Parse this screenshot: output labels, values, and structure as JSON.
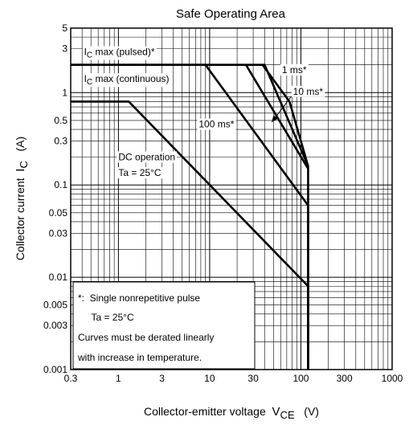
{
  "chart_data": {
    "type": "line",
    "title": "Safe Operating Area",
    "xlabel": {
      "main": "Collector-emitter voltage",
      "sym": "V",
      "sub": "CE",
      "unit": "(V)"
    },
    "ylabel": {
      "main": "Collector current",
      "sym": "I",
      "sub": "C",
      "unit": "(A)"
    },
    "x_scale": "log",
    "y_scale": "log",
    "xlim": [
      0.3,
      1000
    ],
    "ylim": [
      0.001,
      5
    ],
    "grid": true,
    "x_ticks": [
      {
        "v": 0.3,
        "t": "0.3"
      },
      {
        "v": 1,
        "t": "1"
      },
      {
        "v": 3,
        "t": "3"
      },
      {
        "v": 10,
        "t": "10"
      },
      {
        "v": 30,
        "t": "30"
      },
      {
        "v": 100,
        "t": "100"
      },
      {
        "v": 300,
        "t": "300"
      },
      {
        "v": 1000,
        "t": "1000"
      }
    ],
    "y_ticks": [
      {
        "v": 5,
        "t": "5"
      },
      {
        "v": 3,
        "t": "3"
      },
      {
        "v": 1,
        "t": "1"
      },
      {
        "v": 0.5,
        "t": "0.5"
      },
      {
        "v": 0.3,
        "t": "0.3"
      },
      {
        "v": 0.1,
        "t": "0.1"
      },
      {
        "v": 0.05,
        "t": "0.05"
      },
      {
        "v": 0.03,
        "t": "0.03"
      },
      {
        "v": 0.01,
        "t": "0.01"
      },
      {
        "v": 0.005,
        "t": "0.005"
      },
      {
        "v": 0.003,
        "t": "0.003"
      },
      {
        "v": 0.001,
        "t": "0.001"
      }
    ],
    "series": [
      {
        "id": "dc",
        "points": [
          [
            0.3,
            0.8
          ],
          [
            1.3,
            0.8
          ],
          [
            120,
            0.008
          ],
          [
            120,
            0.001
          ]
        ]
      },
      {
        "id": "100ms",
        "points": [
          [
            0.3,
            2
          ],
          [
            9,
            2
          ],
          [
            120,
            0.06
          ],
          [
            120,
            0.001
          ]
        ]
      },
      {
        "id": "10ms",
        "points": [
          [
            25,
            2
          ],
          [
            120,
            0.15
          ]
        ]
      },
      {
        "id": "1ms",
        "points": [
          [
            0.3,
            2
          ],
          [
            40,
            2
          ],
          [
            120,
            0.16
          ],
          [
            120,
            0.001
          ]
        ]
      },
      {
        "id": "limit",
        "points": [
          [
            38,
            2
          ],
          [
            75,
            0.8
          ],
          [
            120,
            0.16
          ]
        ]
      }
    ],
    "curve_labels": [
      {
        "id": "ic-pulsed",
        "pre": "I",
        "sub": "C",
        "post": " max (pulsed)*",
        "x": 0.42,
        "y": 2.55
      },
      {
        "id": "ic-cont",
        "pre": "I",
        "sub": "C",
        "post": " max (continuous)",
        "x": 0.42,
        "y": 1.3
      },
      {
        "id": "label-1ms",
        "text": "1 ms*",
        "x": 62,
        "y": 1.63
      },
      {
        "id": "label-10ms",
        "text": "10 ms*",
        "x": 82,
        "y": 0.95
      },
      {
        "id": "label-100ms",
        "text": "100 ms*",
        "x": 7.6,
        "y": 0.42
      },
      {
        "id": "label-dc1",
        "text": "DC operation",
        "x": 1.0,
        "y": 0.185
      },
      {
        "id": "label-dc2",
        "text": "Ta = 25°C",
        "x": 1.0,
        "y": 0.125
      }
    ],
    "notes": [
      "*:  Single nonrepetitive pulse",
      "     Ta = 25°C",
      "Curves must be derated linearly",
      "with increase in temperature."
    ]
  }
}
